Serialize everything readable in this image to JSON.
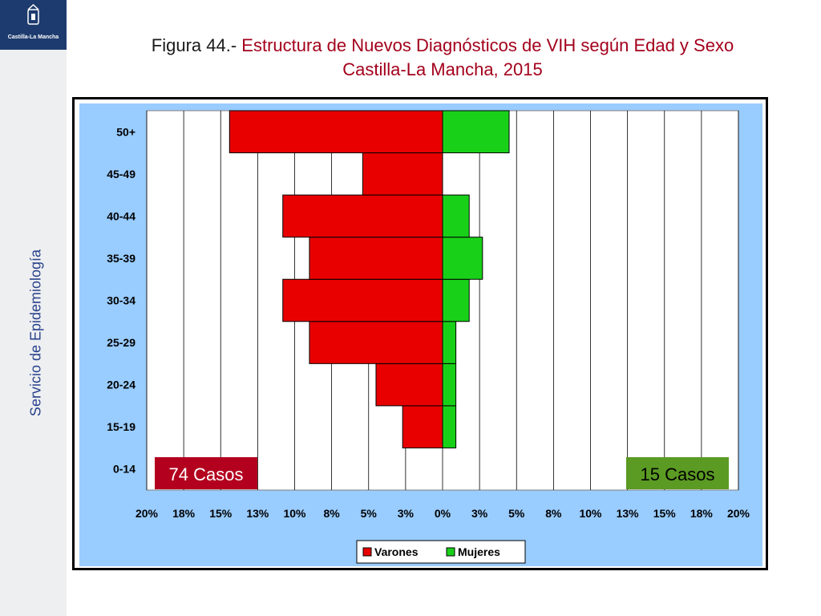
{
  "sidebar": {
    "org_name": "Castilla-La Mancha",
    "department": "Servicio de Epidemiología"
  },
  "header": {
    "figure_label": "Figura 44.-",
    "title_line1": "Estructura de Nuevos Diagnósticos de VIH según Edad y Sexo",
    "title_line2": "Castilla-La Mancha, 2015"
  },
  "chart_data": {
    "type": "bar",
    "orientation": "horizontal",
    "layout": "population-pyramid",
    "title": "Estructura de Nuevos Diagnósticos de VIH según Edad y Sexo",
    "xlabel": "",
    "ylabel": "",
    "categories": [
      "0-14",
      "15-19",
      "20-24",
      "25-29",
      "30-34",
      "35-39",
      "40-44",
      "45-49",
      "50+"
    ],
    "series": [
      {
        "name": "Varones",
        "side": "left",
        "color": "#e80000",
        "values": [
          0,
          2.7,
          4.5,
          9.0,
          10.8,
          9.0,
          10.8,
          5.4,
          14.4
        ]
      },
      {
        "name": "Mujeres",
        "side": "right",
        "color": "#19d019",
        "values": [
          0,
          0.9,
          0.9,
          0.9,
          1.8,
          2.7,
          1.8,
          0,
          4.5
        ]
      }
    ],
    "x_ticks": [
      "20%",
      "18%",
      "15%",
      "13%",
      "10%",
      "8%",
      "5%",
      "3%",
      "0%",
      "3%",
      "5%",
      "8%",
      "10%",
      "13%",
      "15%",
      "18%",
      "20%"
    ],
    "xlim": [
      -20,
      20
    ],
    "grid": true,
    "legend_position": "bottom",
    "annotations": [
      {
        "text": "74 Casos",
        "side": "left",
        "color": "#b3001e"
      },
      {
        "text": "15 Casos",
        "side": "right",
        "color": "#5b9a23"
      }
    ],
    "plot_background": "#ffffff",
    "frame_background": "#99ccff"
  }
}
